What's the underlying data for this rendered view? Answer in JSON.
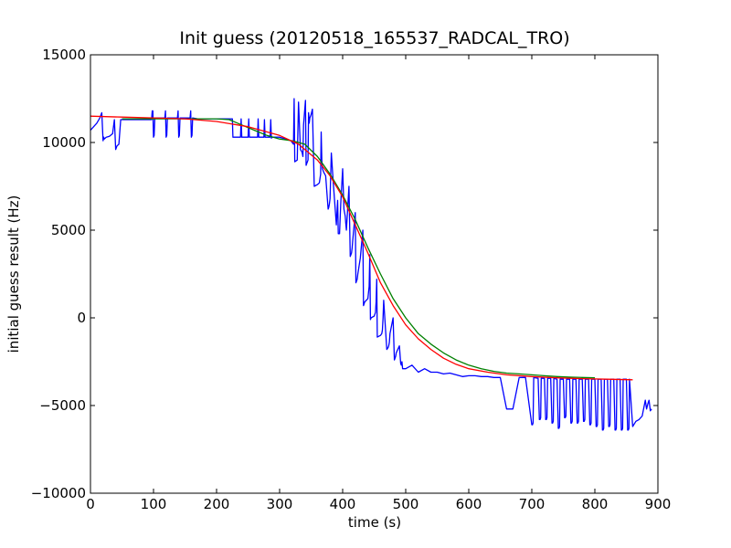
{
  "chart_data": {
    "type": "line",
    "title": "Init guess (20120518_165537_RADCAL_TRO)",
    "xlabel": "time (s)",
    "ylabel": "initial guess result (Hz)",
    "xlim": [
      0,
      900
    ],
    "ylim": [
      -10000,
      15000
    ],
    "xticks": [
      0,
      100,
      200,
      300,
      400,
      500,
      600,
      700,
      800,
      900
    ],
    "yticks": [
      -10000,
      -5000,
      0,
      5000,
      10000,
      15000
    ],
    "xtick_labels": [
      "0",
      "100",
      "200",
      "300",
      "400",
      "500",
      "600",
      "700",
      "800",
      "900"
    ],
    "ytick_labels": [
      "−10000",
      "−5000",
      "0",
      "5000",
      "10000",
      "15000"
    ],
    "grid": false,
    "series": [
      {
        "color": "#0000ff",
        "x": [
          0,
          5,
          10,
          15,
          18,
          20,
          21,
          22,
          25,
          30,
          35,
          38,
          40,
          41,
          42,
          45,
          48,
          50,
          52,
          55,
          60,
          65,
          70,
          80,
          90,
          97,
          98,
          99,
          100,
          101,
          102,
          110,
          118,
          119,
          120,
          121,
          122,
          130,
          138,
          139,
          140,
          141,
          142,
          150,
          158,
          159,
          160,
          161,
          162,
          170,
          180,
          190,
          200,
          210,
          220,
          225,
          226,
          227,
          228,
          235,
          238,
          239,
          240,
          241,
          242,
          247,
          248,
          249,
          250,
          251,
          252,
          260,
          265,
          266,
          267,
          268,
          270,
          275,
          276,
          277,
          278,
          285,
          286,
          287,
          288,
          290,
          300,
          310,
          318,
          320,
          322,
          323,
          324,
          326,
          328,
          330,
          333,
          335,
          336,
          337,
          338,
          341,
          342,
          343,
          345,
          346,
          347,
          348,
          350,
          352,
          355,
          360,
          363,
          365,
          366,
          367,
          368,
          370,
          373,
          377,
          378,
          379,
          380,
          382,
          385,
          390,
          392,
          393,
          394,
          395,
          397,
          400,
          402,
          404,
          405,
          406,
          410,
          412,
          413,
          414,
          415,
          416,
          420,
          421,
          422,
          423,
          424,
          428,
          432,
          433,
          434,
          435,
          440,
          442,
          443,
          444,
          445,
          450,
          452,
          453,
          454,
          455,
          460,
          462,
          463,
          464,
          465,
          470,
          472,
          473,
          474,
          475,
          480,
          482,
          483,
          484,
          485,
          490,
          492,
          493,
          494,
          495,
          500,
          510,
          520,
          530,
          540,
          550,
          560,
          570,
          580,
          590,
          600,
          610,
          620,
          630,
          640,
          650,
          660,
          670,
          680,
          690,
          700,
          701,
          702,
          703,
          710,
          712,
          713,
          714,
          715,
          720,
          722,
          723,
          724,
          725,
          730,
          732,
          733,
          734,
          735,
          740,
          742,
          743,
          744,
          745,
          750,
          752,
          753,
          754,
          755,
          760,
          762,
          763,
          764,
          765,
          770,
          772,
          773,
          774,
          775,
          780,
          782,
          783,
          784,
          785,
          790,
          792,
          793,
          794,
          795,
          800,
          802,
          803,
          804,
          805,
          810,
          812,
          813,
          814,
          815,
          820,
          822,
          823,
          824,
          825,
          830,
          832,
          833,
          834,
          835,
          840,
          842,
          843,
          844,
          845,
          850,
          852,
          853,
          854,
          855,
          860,
          865,
          870,
          875,
          880,
          882,
          884,
          886,
          888,
          890
        ],
        "y": [
          10700,
          10900,
          11100,
          11400,
          11700,
          10100,
          10300,
          10200,
          10300,
          10350,
          10500,
          11300,
          9600,
          9700,
          9800,
          9900,
          11300,
          11300,
          11300,
          11300,
          11300,
          11300,
          11300,
          11300,
          11300,
          11300,
          11800,
          11800,
          10300,
          10400,
          11400,
          11400,
          11400,
          11800,
          10300,
          10400,
          11400,
          11400,
          11400,
          11800,
          10300,
          10400,
          11400,
          11400,
          11400,
          11800,
          10300,
          10400,
          11400,
          11350,
          11350,
          11350,
          11350,
          11350,
          11350,
          11350,
          10300,
          10300,
          10300,
          10300,
          10300,
          11350,
          10300,
          10300,
          10300,
          10300,
          10300,
          10300,
          10300,
          11350,
          10300,
          10300,
          10300,
          11350,
          10300,
          10300,
          10300,
          10300,
          11300,
          10300,
          10300,
          10300,
          11300,
          10250,
          10300,
          10300,
          10300,
          10200,
          10100,
          10000,
          9900,
          12500,
          8900,
          8950,
          9000,
          12300,
          9600,
          9500,
          9400,
          9200,
          11000,
          12400,
          8700,
          8800,
          9000,
          11700,
          11100,
          11400,
          11600,
          11900,
          7500,
          7600,
          7700,
          8200,
          10600,
          9000,
          8500,
          8300,
          8100,
          6200,
          6300,
          6500,
          6800,
          9400,
          7800,
          5300,
          6700,
          4800,
          4800,
          4800,
          6500,
          8500,
          6200,
          5800,
          5400,
          5000,
          7500,
          3500,
          3600,
          3700,
          4000,
          4400,
          6000,
          2000,
          2100,
          2200,
          2500,
          3400,
          5000,
          700,
          800,
          900,
          1100,
          1800,
          3600,
          -100,
          0,
          100,
          300,
          900,
          2200,
          -1100,
          -1000,
          -900,
          -700,
          0,
          1000,
          -1800,
          -1700,
          -1600,
          -1400,
          -900,
          0,
          -2400,
          -2300,
          -2200,
          -2000,
          -1600,
          -2600,
          -2700,
          -2500,
          -2900,
          -2900,
          -2700,
          -3100,
          -2900,
          -3100,
          -3100,
          -3200,
          -3150,
          -3250,
          -3350,
          -3300,
          -3300,
          -3350,
          -3350,
          -3400,
          -3400,
          -5200,
          -5200,
          -3400,
          -3400,
          -6100,
          -6100,
          -6000,
          -3400,
          -3450,
          -5800,
          -5800,
          -5700,
          -3450,
          -3450,
          -5800,
          -5800,
          -5700,
          -3450,
          -3450,
          -6000,
          -6000,
          -5900,
          -3450,
          -3500,
          -6300,
          -6300,
          -6200,
          -3500,
          -3500,
          -5700,
          -5700,
          -5600,
          -3500,
          -3500,
          -6000,
          -6000,
          -5900,
          -3500,
          -3500,
          -6000,
          -6000,
          -5900,
          -3500,
          -3500,
          -5900,
          -5900,
          -5800,
          -3500,
          -3500,
          -6100,
          -6100,
          -6000,
          -3500,
          -3500,
          -6200,
          -6200,
          -6100,
          -3500,
          -3500,
          -6400,
          -6400,
          -6300,
          -3500,
          -3500,
          -6200,
          -6200,
          -6100,
          -3500,
          -3500,
          -6400,
          -6400,
          -6300,
          -3500,
          -3500,
          -6400,
          -6400,
          -6300,
          -3500,
          -3500,
          -6400,
          -6400,
          -6300,
          -3500,
          -6200,
          -5900,
          -5800,
          -5600,
          -4700,
          -5200,
          -4900,
          -4700,
          -5300,
          -5200
        ]
      },
      {
        "color": "#008000",
        "x": [
          50,
          100,
          150,
          200,
          220,
          240,
          260,
          280,
          300,
          320,
          340,
          360,
          380,
          400,
          420,
          440,
          460,
          480,
          500,
          520,
          540,
          560,
          580,
          600,
          620,
          640,
          660,
          680,
          700,
          720,
          740,
          760,
          780,
          800
        ],
        "y": [
          11350,
          11350,
          11350,
          11350,
          11300,
          11000,
          10700,
          10400,
          10200,
          10100,
          9900,
          9200,
          8200,
          7000,
          5600,
          4000,
          2500,
          1100,
          0,
          -900,
          -1500,
          -2000,
          -2400,
          -2700,
          -2900,
          -3050,
          -3150,
          -3200,
          -3250,
          -3300,
          -3350,
          -3380,
          -3400,
          -3420
        ]
      },
      {
        "color": "#ff0000",
        "x": [
          0,
          50,
          100,
          150,
          200,
          250,
          300,
          330,
          360,
          380,
          400,
          420,
          440,
          460,
          480,
          500,
          520,
          540,
          560,
          580,
          600,
          630,
          660,
          700,
          740,
          780,
          820,
          860
        ],
        "y": [
          11500,
          11450,
          11400,
          11350,
          11200,
          10900,
          10400,
          9900,
          9000,
          8100,
          6900,
          5300,
          3700,
          2000,
          700,
          -400,
          -1200,
          -1800,
          -2300,
          -2650,
          -2900,
          -3100,
          -3250,
          -3350,
          -3420,
          -3470,
          -3500,
          -3530
        ]
      }
    ]
  }
}
